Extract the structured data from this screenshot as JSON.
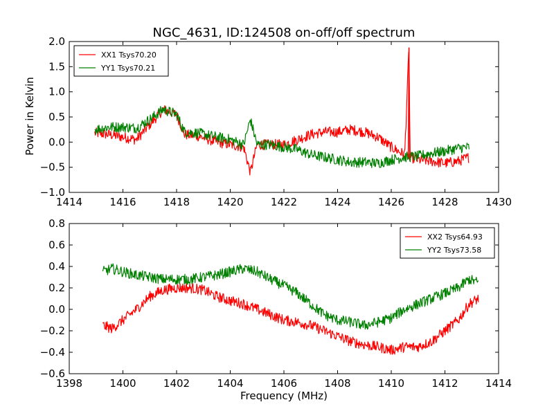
{
  "chart_data": [
    {
      "type": "line",
      "title": "NGC_4631, ID:124508 on-off/off spectrum",
      "xlabel": "",
      "ylabel": "Power in Kelvin",
      "xlim": [
        1414,
        1430
      ],
      "ylim": [
        -1.0,
        2.0
      ],
      "xticks": [
        "1414",
        "1416",
        "1418",
        "1420",
        "1422",
        "1424",
        "1426",
        "1428",
        "1430"
      ],
      "yticks": [
        "−1.0",
        "−0.5",
        "0.0",
        "0.5",
        "1.0",
        "1.5",
        "2.0"
      ],
      "legend_position": "top-left",
      "series": [
        {
          "name": "XX1 Tsys70.20",
          "color": "#ff0000",
          "x": [
            1414.95,
            1415.5,
            1416.0,
            1416.5,
            1417.0,
            1417.5,
            1418.0,
            1418.3,
            1418.8,
            1419.5,
            1420.0,
            1420.5,
            1420.75,
            1421.0,
            1421.5,
            1422.0,
            1422.5,
            1423.0,
            1423.5,
            1424.0,
            1424.5,
            1425.0,
            1425.5,
            1426.0,
            1426.5,
            1426.66,
            1426.7,
            1427.0,
            1427.5,
            1428.0,
            1428.5,
            1428.9
          ],
          "values": [
            0.18,
            0.15,
            0.1,
            0.05,
            0.35,
            0.65,
            0.55,
            0.15,
            0.12,
            0.0,
            -0.05,
            -0.1,
            -0.6,
            -0.05,
            -0.05,
            -0.05,
            0.05,
            0.15,
            0.2,
            0.2,
            0.25,
            0.2,
            0.1,
            -0.1,
            -0.25,
            1.88,
            -0.3,
            -0.35,
            -0.38,
            -0.42,
            -0.38,
            -0.3
          ]
        },
        {
          "name": "YY1 Tsys70.21",
          "color": "#008000",
          "x": [
            1414.95,
            1415.5,
            1416.0,
            1416.5,
            1417.0,
            1417.5,
            1418.0,
            1418.3,
            1418.8,
            1419.5,
            1420.0,
            1420.5,
            1420.75,
            1421.0,
            1421.5,
            1422.0,
            1422.5,
            1423.0,
            1423.5,
            1424.0,
            1424.5,
            1425.0,
            1425.5,
            1426.0,
            1426.5,
            1427.0,
            1427.5,
            1428.0,
            1428.5,
            1428.9
          ],
          "values": [
            0.25,
            0.3,
            0.3,
            0.28,
            0.45,
            0.65,
            0.55,
            0.2,
            0.18,
            0.1,
            0.05,
            -0.05,
            0.45,
            -0.05,
            -0.05,
            -0.1,
            -0.15,
            -0.25,
            -0.3,
            -0.35,
            -0.4,
            -0.4,
            -0.42,
            -0.35,
            -0.3,
            -0.28,
            -0.22,
            -0.18,
            -0.12,
            -0.1
          ]
        }
      ]
    },
    {
      "type": "line",
      "title": "",
      "xlabel": "Frequency (MHz)",
      "ylabel": "",
      "xlim": [
        1398,
        1414
      ],
      "ylim": [
        -0.6,
        0.8
      ],
      "xticks": [
        "1398",
        "1400",
        "1402",
        "1404",
        "1406",
        "1408",
        "1410",
        "1412",
        "1414"
      ],
      "yticks": [
        "−0.6",
        "−0.4",
        "−0.2",
        "0.0",
        "0.2",
        "0.4",
        "0.6",
        "0.8"
      ],
      "legend_position": "top-right",
      "series": [
        {
          "name": "XX2 Tsys64.93",
          "color": "#ff0000",
          "x": [
            1399.25,
            1399.6,
            1400.0,
            1400.5,
            1401.0,
            1401.5,
            1402.0,
            1402.5,
            1403.0,
            1403.5,
            1404.0,
            1404.5,
            1405.0,
            1405.5,
            1406.0,
            1406.5,
            1407.0,
            1407.5,
            1408.0,
            1408.5,
            1409.0,
            1409.5,
            1410.0,
            1410.5,
            1411.0,
            1411.5,
            1412.0,
            1412.5,
            1412.9,
            1413.25
          ],
          "values": [
            -0.15,
            -0.18,
            -0.1,
            0.0,
            0.12,
            0.18,
            0.2,
            0.2,
            0.18,
            0.12,
            0.08,
            0.05,
            0.0,
            -0.05,
            -0.1,
            -0.12,
            -0.15,
            -0.2,
            -0.25,
            -0.3,
            -0.33,
            -0.35,
            -0.38,
            -0.35,
            -0.35,
            -0.3,
            -0.2,
            -0.1,
            0.05,
            0.1
          ]
        },
        {
          "name": "YY2 Tsys73.58",
          "color": "#008000",
          "x": [
            1399.25,
            1399.6,
            1400.0,
            1400.5,
            1401.0,
            1401.5,
            1402.0,
            1402.5,
            1403.0,
            1403.5,
            1404.0,
            1404.5,
            1405.0,
            1405.5,
            1406.0,
            1406.5,
            1407.0,
            1407.5,
            1408.0,
            1408.5,
            1409.0,
            1409.5,
            1410.0,
            1410.5,
            1411.0,
            1411.5,
            1412.0,
            1412.5,
            1412.9,
            1413.25
          ],
          "values": [
            0.35,
            0.38,
            0.35,
            0.32,
            0.3,
            0.28,
            0.28,
            0.28,
            0.3,
            0.32,
            0.35,
            0.38,
            0.35,
            0.28,
            0.22,
            0.15,
            0.05,
            -0.05,
            -0.1,
            -0.12,
            -0.15,
            -0.12,
            -0.08,
            0.0,
            0.05,
            0.1,
            0.15,
            0.2,
            0.28,
            0.25
          ]
        }
      ]
    }
  ]
}
